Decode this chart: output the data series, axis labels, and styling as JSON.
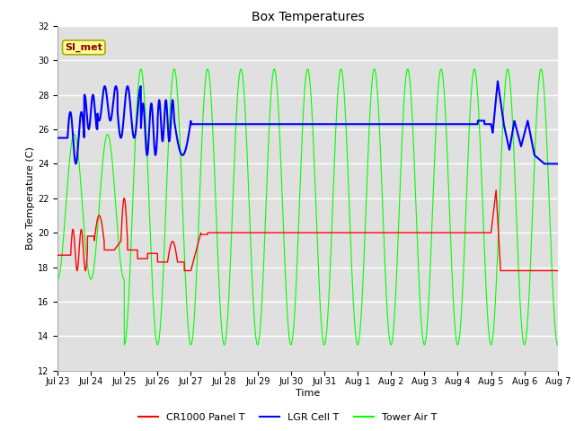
{
  "title": "Box Temperatures",
  "xlabel": "Time",
  "ylabel": "Box Temperature (C)",
  "ylim": [
    12,
    32
  ],
  "yticks": [
    12,
    14,
    16,
    18,
    20,
    22,
    24,
    26,
    28,
    30,
    32
  ],
  "xlim": [
    0,
    15
  ],
  "xtick_positions": [
    0,
    1,
    2,
    3,
    4,
    5,
    6,
    7,
    8,
    9,
    10,
    11,
    12,
    13,
    14,
    15
  ],
  "xtick_labels": [
    "Jul 23",
    "Jul 24",
    "Jul 25",
    "Jul 26",
    "Jul 27",
    "Jul 28",
    "Jul 29",
    "Jul 30",
    "Jul 31",
    "Aug 1",
    "Aug 2",
    "Aug 3",
    "Aug 4",
    "Aug 5",
    "Aug 6",
    "Aug 7"
  ],
  "plot_bg_color": "#e0e0e0",
  "fig_bg_color": "#ffffff",
  "grid_color": "#ffffff",
  "annotation_text": "SI_met",
  "annotation_fg": "#8b0000",
  "annotation_bg": "#ffff99",
  "annotation_border": "#aaaa00",
  "line_red": "#ff0000",
  "line_blue": "#0000ff",
  "line_green": "#00ff00",
  "legend_labels": [
    "CR1000 Panel T",
    "LGR Cell T",
    "Tower Air T"
  ],
  "title_fontsize": 10,
  "axis_fontsize": 8,
  "tick_fontsize": 7
}
